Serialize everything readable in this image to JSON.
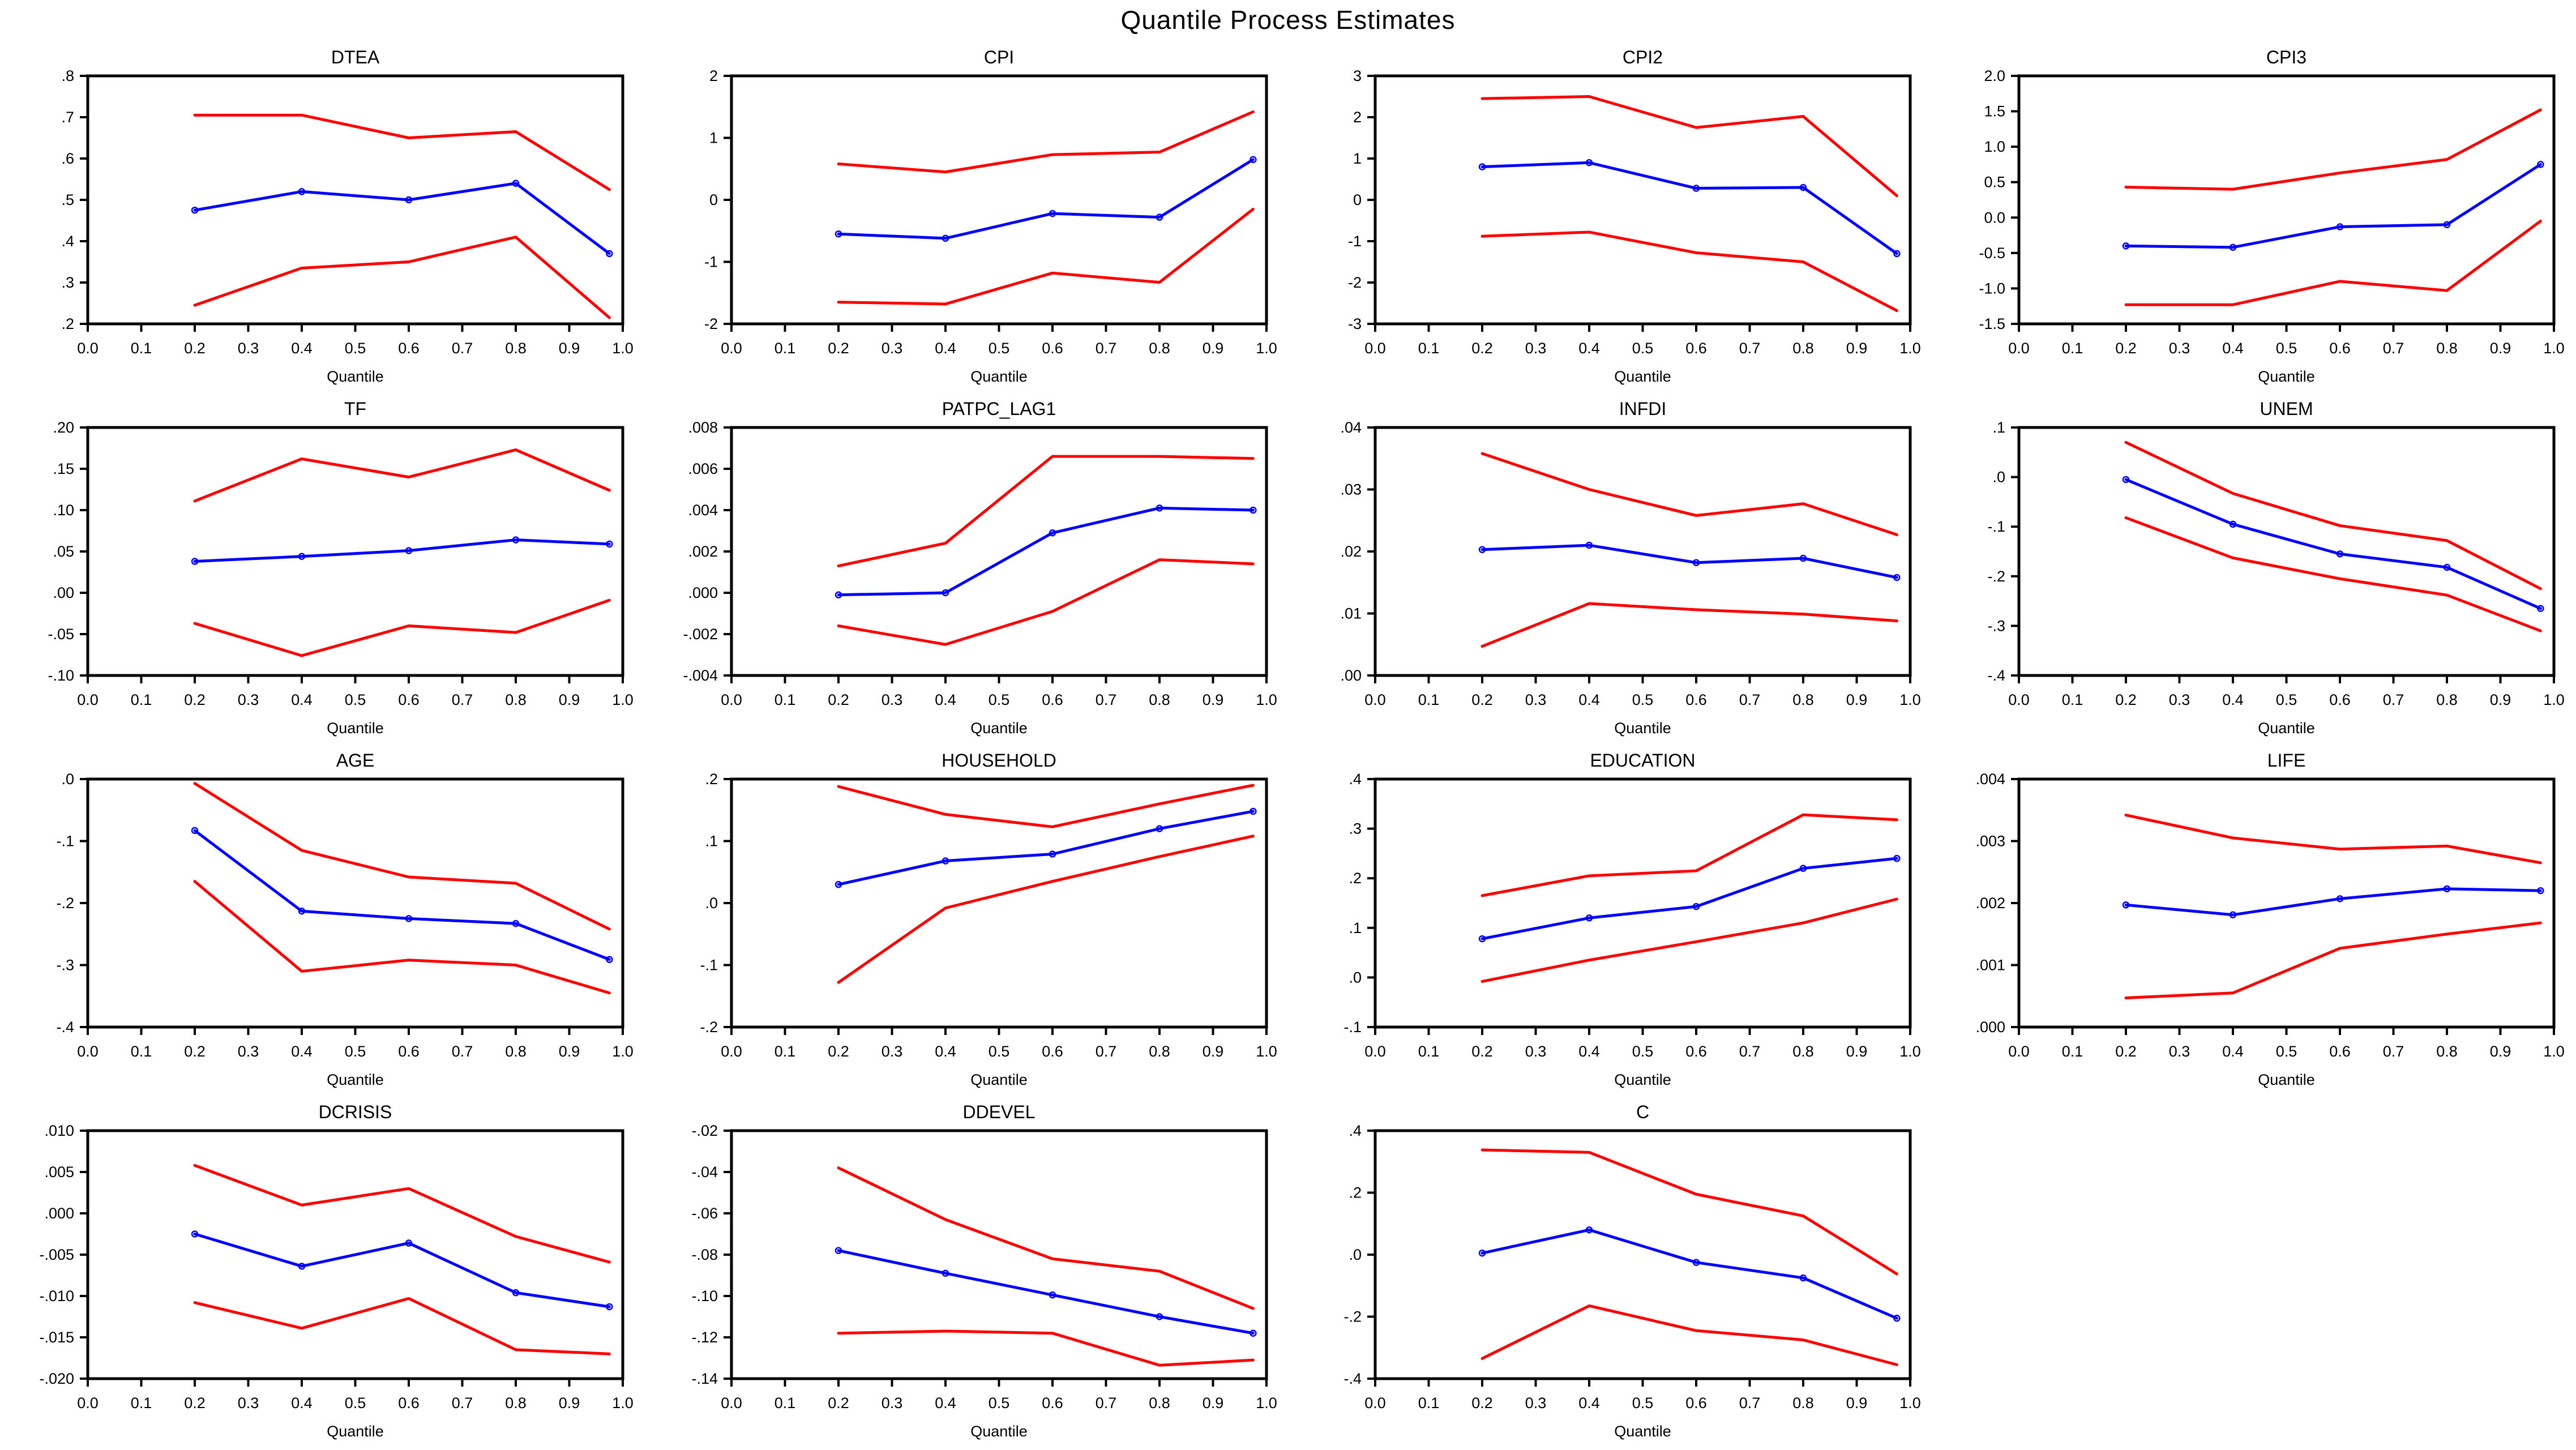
{
  "chart_data": {
    "type": "line",
    "suptitle": "Quantile Process Estimates",
    "xlabel": "Quantile",
    "x_points": [
      0.2,
      0.4,
      0.6,
      0.8,
      0.975
    ],
    "xlim": [
      0.0,
      1.0
    ],
    "xtick_values": [
      0.0,
      0.1,
      0.2,
      0.3,
      0.4,
      0.5,
      0.6,
      0.7,
      0.8,
      0.9,
      1.0
    ],
    "xtick_labels": [
      "0.0",
      "0.1",
      "0.2",
      "0.3",
      "0.4",
      "0.5",
      "0.6",
      "0.7",
      "0.8",
      "0.9",
      "1.0"
    ],
    "grid": false,
    "legend": "none",
    "series_roles": [
      {
        "name": "estimate",
        "color": "#0000ff",
        "marker": "circle"
      },
      {
        "name": "upper-confidence-band",
        "color": "#ff0000",
        "marker": "none"
      },
      {
        "name": "lower-confidence-band",
        "color": "#ff0000",
        "marker": "none"
      }
    ],
    "colors": {
      "estimate": "#0000ff",
      "band": "#ff0000",
      "frame": "#000000",
      "background": "#ffffff"
    },
    "charts": [
      {
        "title": "DTEA",
        "ylim": [
          0.2,
          0.8
        ],
        "ytick_values": [
          0.2,
          0.3,
          0.4,
          0.5,
          0.6,
          0.7,
          0.8
        ],
        "ytick_labels": [
          ".2",
          ".3",
          ".4",
          ".5",
          ".6",
          ".7",
          ".8"
        ],
        "estimate": [
          0.475,
          0.52,
          0.5,
          0.54,
          0.37
        ],
        "upper": [
          0.705,
          0.705,
          0.65,
          0.665,
          0.525
        ],
        "lower": [
          0.245,
          0.335,
          0.35,
          0.41,
          0.215
        ]
      },
      {
        "title": "CPI",
        "ylim": [
          -2,
          2
        ],
        "ytick_values": [
          -2,
          -1,
          0,
          1,
          2
        ],
        "ytick_labels": [
          "-2",
          "-1",
          "0",
          "1",
          "2"
        ],
        "estimate": [
          -0.55,
          -0.62,
          -0.22,
          -0.28,
          0.65
        ],
        "upper": [
          0.58,
          0.45,
          0.73,
          0.77,
          1.42
        ],
        "lower": [
          -1.65,
          -1.68,
          -1.18,
          -1.33,
          -0.15
        ]
      },
      {
        "title": "CPI2",
        "ylim": [
          -3,
          3
        ],
        "ytick_values": [
          -3,
          -2,
          -1,
          0,
          1,
          2,
          3
        ],
        "ytick_labels": [
          "-3",
          "-2",
          "-1",
          "0",
          "1",
          "2",
          "3"
        ],
        "estimate": [
          0.8,
          0.9,
          0.28,
          0.3,
          -1.3
        ],
        "upper": [
          2.45,
          2.5,
          1.75,
          2.02,
          0.1
        ],
        "lower": [
          -0.88,
          -0.78,
          -1.28,
          -1.5,
          -2.68
        ]
      },
      {
        "title": "CPI3",
        "ylim": [
          -1.5,
          2.0
        ],
        "ytick_values": [
          -1.5,
          -1.0,
          -0.5,
          0.0,
          0.5,
          1.0,
          1.5,
          2.0
        ],
        "ytick_labels": [
          "-1.5",
          "-1.0",
          "-0.5",
          "0.0",
          "0.5",
          "1.0",
          "1.5",
          "2.0"
        ],
        "estimate": [
          -0.4,
          -0.42,
          -0.13,
          -0.1,
          0.75
        ],
        "upper": [
          0.43,
          0.4,
          0.63,
          0.82,
          1.52
        ],
        "lower": [
          -1.23,
          -1.23,
          -0.9,
          -1.03,
          -0.05
        ]
      },
      {
        "title": "TF",
        "ylim": [
          -0.1,
          0.2
        ],
        "ytick_values": [
          -0.1,
          -0.05,
          0.0,
          0.05,
          0.1,
          0.15,
          0.2
        ],
        "ytick_labels": [
          "-.10",
          "-.05",
          ".00",
          ".05",
          ".10",
          ".15",
          ".20"
        ],
        "estimate": [
          0.038,
          0.044,
          0.051,
          0.064,
          0.059
        ],
        "upper": [
          0.111,
          0.162,
          0.14,
          0.173,
          0.124
        ],
        "lower": [
          -0.037,
          -0.076,
          -0.04,
          -0.048,
          -0.009
        ]
      },
      {
        "title": "PATPC_LAG1",
        "ylim": [
          -0.004,
          0.008
        ],
        "ytick_values": [
          -0.004,
          -0.002,
          0.0,
          0.002,
          0.004,
          0.006,
          0.008
        ],
        "ytick_labels": [
          "-.004",
          "-.002",
          ".000",
          ".002",
          ".004",
          ".006",
          ".008"
        ],
        "estimate": [
          -0.0001,
          0.0,
          0.0029,
          0.0041,
          0.004
        ],
        "upper": [
          0.0013,
          0.0024,
          0.0066,
          0.0066,
          0.0065
        ],
        "lower": [
          -0.0016,
          -0.0025,
          -0.0009,
          0.0016,
          0.0014
        ]
      },
      {
        "title": "INFDI",
        "ylim": [
          0.0,
          0.04
        ],
        "ytick_values": [
          0.0,
          0.01,
          0.02,
          0.03,
          0.04
        ],
        "ytick_labels": [
          ".00",
          ".01",
          ".02",
          ".03",
          ".04"
        ],
        "estimate": [
          0.0203,
          0.021,
          0.0182,
          0.0189,
          0.0158
        ],
        "upper": [
          0.0358,
          0.03,
          0.0258,
          0.0277,
          0.0227
        ],
        "lower": [
          0.0047,
          0.0116,
          0.0106,
          0.0099,
          0.0088
        ]
      },
      {
        "title": "UNEM",
        "ylim": [
          -0.4,
          0.1
        ],
        "ytick_values": [
          -0.4,
          -0.3,
          -0.2,
          -0.1,
          0.0,
          0.1
        ],
        "ytick_labels": [
          "-.4",
          "-.3",
          "-.2",
          "-.1",
          ".0",
          ".1"
        ],
        "estimate": [
          -0.005,
          -0.095,
          -0.155,
          -0.182,
          -0.265
        ],
        "upper": [
          0.07,
          -0.033,
          -0.098,
          -0.128,
          -0.225
        ],
        "lower": [
          -0.082,
          -0.163,
          -0.205,
          -0.238,
          -0.31
        ]
      },
      {
        "title": "AGE",
        "ylim": [
          -0.4,
          0.0
        ],
        "ytick_values": [
          -0.4,
          -0.3,
          -0.2,
          -0.1,
          0.0
        ],
        "ytick_labels": [
          "-.4",
          "-.3",
          "-.2",
          "-.1",
          ".0"
        ],
        "estimate": [
          -0.083,
          -0.213,
          -0.225,
          -0.233,
          -0.291
        ],
        "upper": [
          -0.007,
          -0.115,
          -0.158,
          -0.168,
          -0.242
        ],
        "lower": [
          -0.165,
          -0.31,
          -0.292,
          -0.3,
          -0.345
        ]
      },
      {
        "title": "HOUSEHOLD",
        "ylim": [
          -0.2,
          0.2
        ],
        "ytick_values": [
          -0.2,
          -0.1,
          0.0,
          0.1,
          0.2
        ],
        "ytick_labels": [
          "-.2",
          "-.1",
          ".0",
          ".1",
          ".2"
        ],
        "estimate": [
          0.03,
          0.068,
          0.079,
          0.12,
          0.148
        ],
        "upper": [
          0.188,
          0.143,
          0.123,
          0.16,
          0.19
        ],
        "lower": [
          -0.128,
          -0.008,
          0.035,
          0.075,
          0.108
        ]
      },
      {
        "title": "EDUCATION",
        "ylim": [
          -0.1,
          0.4
        ],
        "ytick_values": [
          -0.1,
          0.0,
          0.1,
          0.2,
          0.3,
          0.4
        ],
        "ytick_labels": [
          "-.1",
          ".0",
          ".1",
          ".2",
          ".3",
          ".4"
        ],
        "estimate": [
          0.078,
          0.12,
          0.143,
          0.22,
          0.24
        ],
        "upper": [
          0.165,
          0.205,
          0.215,
          0.328,
          0.318
        ],
        "lower": [
          -0.008,
          0.035,
          0.072,
          0.11,
          0.158
        ]
      },
      {
        "title": "LIFE",
        "ylim": [
          0.0,
          0.004
        ],
        "ytick_values": [
          0.0,
          0.001,
          0.002,
          0.003,
          0.004
        ],
        "ytick_labels": [
          ".000",
          ".001",
          ".002",
          ".003",
          ".004"
        ],
        "estimate": [
          0.00197,
          0.00181,
          0.00207,
          0.00223,
          0.0022
        ],
        "upper": [
          0.00342,
          0.00305,
          0.00287,
          0.00292,
          0.00265
        ],
        "lower": [
          0.00047,
          0.00055,
          0.00127,
          0.0015,
          0.00168
        ]
      },
      {
        "title": "DCRISIS",
        "ylim": [
          -0.02,
          0.01
        ],
        "ytick_values": [
          -0.02,
          -0.015,
          -0.01,
          -0.005,
          0.0,
          0.005,
          0.01
        ],
        "ytick_labels": [
          "-.020",
          "-.015",
          "-.010",
          "-.005",
          ".000",
          ".005",
          ".010"
        ],
        "estimate": [
          -0.0025,
          -0.0064,
          -0.0036,
          -0.0096,
          -0.0113
        ],
        "upper": [
          0.0058,
          0.001,
          0.003,
          -0.0028,
          -0.0059
        ],
        "lower": [
          -0.0108,
          -0.0139,
          -0.0103,
          -0.0165,
          -0.017
        ]
      },
      {
        "title": "DDEVEL",
        "ylim": [
          -0.14,
          -0.02
        ],
        "ytick_values": [
          -0.14,
          -0.12,
          -0.1,
          -0.08,
          -0.06,
          -0.04,
          -0.02
        ],
        "ytick_labels": [
          "-.14",
          "-.12",
          "-.10",
          "-.08",
          "-.06",
          "-.04",
          "-.02"
        ],
        "estimate": [
          -0.078,
          -0.089,
          -0.0995,
          -0.11,
          -0.118
        ],
        "upper": [
          -0.038,
          -0.063,
          -0.082,
          -0.088,
          -0.106
        ],
        "lower": [
          -0.118,
          -0.117,
          -0.118,
          -0.1335,
          -0.131
        ]
      },
      {
        "title": "C",
        "ylim": [
          -0.4,
          0.4
        ],
        "ytick_values": [
          -0.4,
          -0.2,
          0.0,
          0.2,
          0.4
        ],
        "ytick_labels": [
          "-.4",
          "-.2",
          ".0",
          ".2",
          ".4"
        ],
        "estimate": [
          0.005,
          0.08,
          -0.025,
          -0.075,
          -0.205
        ],
        "upper": [
          0.338,
          0.33,
          0.195,
          0.125,
          -0.062
        ],
        "lower": [
          -0.335,
          -0.165,
          -0.245,
          -0.275,
          -0.355
        ]
      }
    ]
  }
}
